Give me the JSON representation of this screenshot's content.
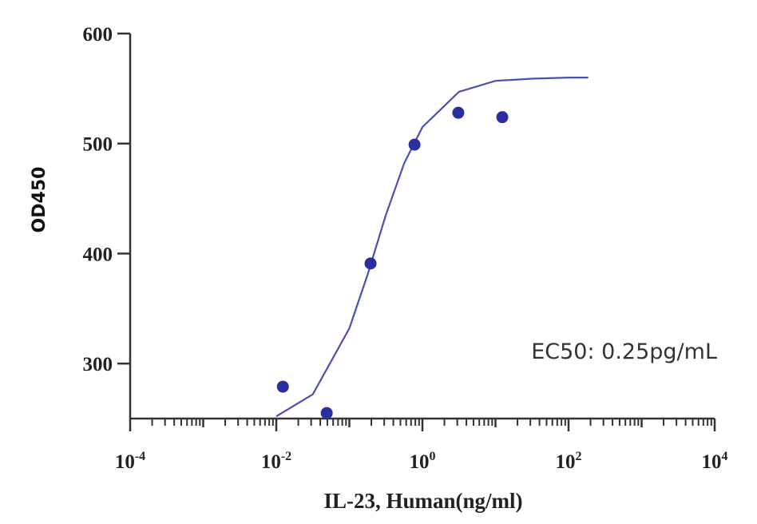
{
  "chart_data": {
    "type": "scatter",
    "xlabel": "IL-23, Human(ng/ml)",
    "ylabel": "OD450",
    "x_scale": "log",
    "xlim": [
      0.0001,
      10000
    ],
    "ylim": [
      250,
      600
    ],
    "x_ticks": [
      {
        "value": 0.0001,
        "base": "10",
        "exp": "-4"
      },
      {
        "value": 0.01,
        "base": "10",
        "exp": "-2"
      },
      {
        "value": 1,
        "base": "10",
        "exp": "0"
      },
      {
        "value": 100,
        "base": "10",
        "exp": "2"
      },
      {
        "value": 10000,
        "base": "10",
        "exp": "4"
      }
    ],
    "y_ticks": [
      "300",
      "400",
      "500",
      "600"
    ],
    "grid": false,
    "annotation": "EC50:  0.25pg/mL",
    "color": "#2a2fa0",
    "points": {
      "x": [
        0.0123,
        0.049,
        0.195,
        0.78,
        3.1,
        12.4
      ],
      "y": [
        279,
        255,
        391,
        499,
        528,
        524
      ]
    },
    "fit_curve": {
      "x": [
        0.01,
        0.0316,
        0.1,
        0.178,
        0.316,
        0.562,
        1,
        3.16,
        10,
        31.6,
        100,
        186
      ],
      "y": [
        252,
        272,
        332,
        381,
        435,
        482,
        515,
        547,
        557,
        559,
        560,
        560
      ]
    }
  }
}
